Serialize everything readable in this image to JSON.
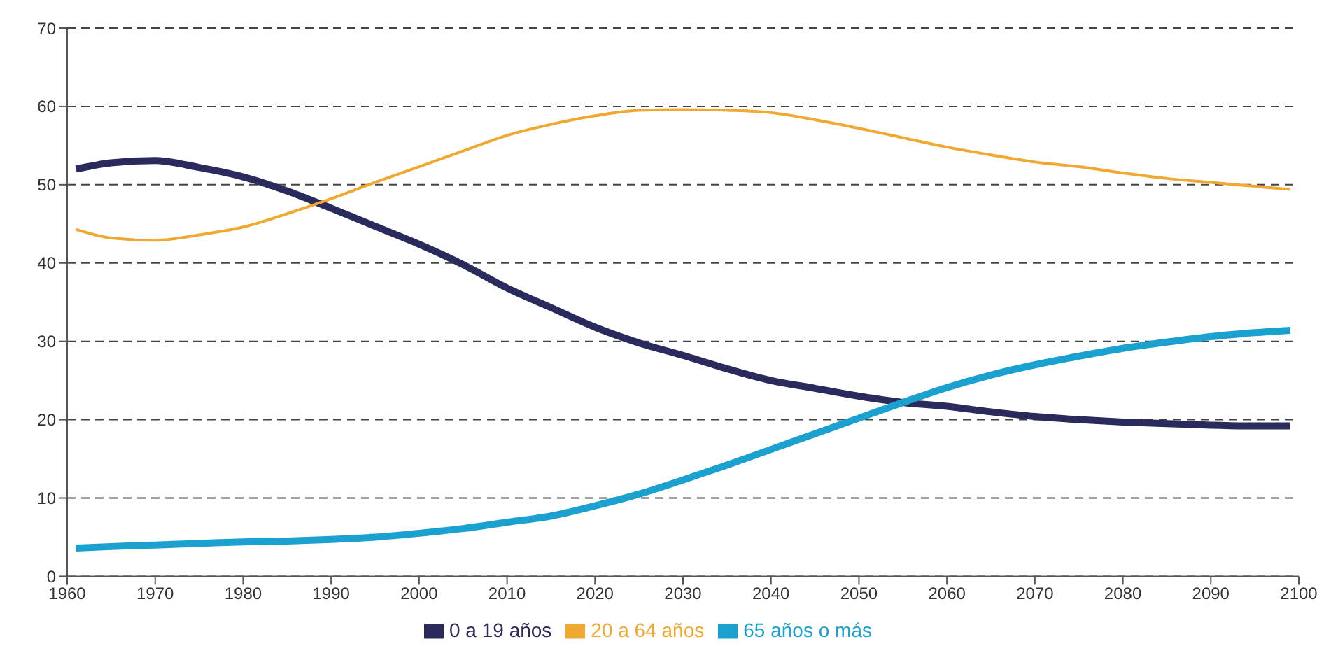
{
  "chart_data": {
    "type": "line",
    "x": [
      1961,
      1965,
      1970,
      1975,
      1980,
      1985,
      1990,
      1995,
      2000,
      2005,
      2010,
      2015,
      2020,
      2025,
      2030,
      2035,
      2040,
      2045,
      2050,
      2055,
      2060,
      2065,
      2070,
      2075,
      2080,
      2085,
      2090,
      2095,
      2099
    ],
    "series": [
      {
        "name": "0 a 19 años",
        "color": "#2a2a5c",
        "values": [
          52,
          52.8,
          53.1,
          52.2,
          51,
          49.2,
          47,
          44.7,
          42.4,
          39.8,
          36.8,
          34.3,
          31.8,
          29.8,
          28.2,
          26.5,
          25,
          24,
          23,
          22.2,
          21.7,
          21,
          20.4,
          20,
          19.7,
          19.5,
          19.3,
          19.2,
          19.2
        ]
      },
      {
        "name": "20 a 64 años",
        "color": "#f0a830",
        "values": [
          44.3,
          43.2,
          42.9,
          43.6,
          44.6,
          46.3,
          48.2,
          50.3,
          52.3,
          54.3,
          56.3,
          57.7,
          58.8,
          59.5,
          59.6,
          59.5,
          59.2,
          58.3,
          57.2,
          56,
          54.8,
          53.8,
          52.9,
          52.3,
          51.5,
          50.8,
          50.3,
          49.8,
          49.4
        ]
      },
      {
        "name": "65 años o más",
        "color": "#1ba1d0",
        "values": [
          3.6,
          3.8,
          4,
          4.2,
          4.4,
          4.5,
          4.7,
          5,
          5.5,
          6.1,
          6.9,
          7.7,
          9,
          10.5,
          12.3,
          14.2,
          16.2,
          18.2,
          20.2,
          22.2,
          24.1,
          25.7,
          27,
          28.1,
          29.1,
          29.9,
          30.6,
          31.1,
          31.4
        ]
      }
    ],
    "xlim": [
      1960,
      2100
    ],
    "xticks": [
      1960,
      1970,
      1980,
      1990,
      2000,
      2010,
      2020,
      2030,
      2040,
      2050,
      2060,
      2070,
      2080,
      2090,
      2100
    ],
    "ylim": [
      0,
      70
    ],
    "yticks": [
      0,
      10,
      20,
      30,
      40,
      50,
      60,
      70
    ],
    "grid": "y",
    "legend": "bottom",
    "marker": "none",
    "line_style": "solid"
  }
}
